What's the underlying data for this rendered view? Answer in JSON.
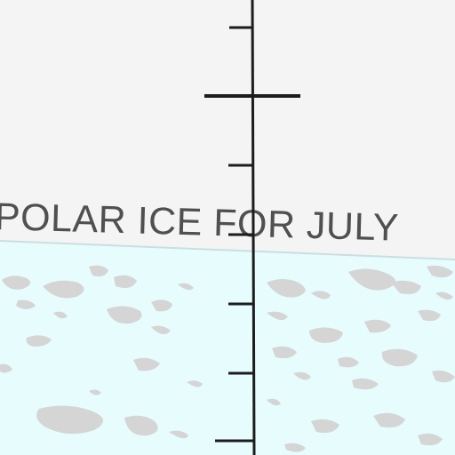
{
  "map": {
    "title": "POLAR ICE FOR JULY",
    "colors": {
      "background": "#f4f4f4",
      "ice": "#e6fcfd",
      "ice_edge": "#c9dfe0",
      "ice_patch": "#d5d5d5",
      "gridline": "#1c1c1c",
      "title_text": "#505050"
    }
  }
}
